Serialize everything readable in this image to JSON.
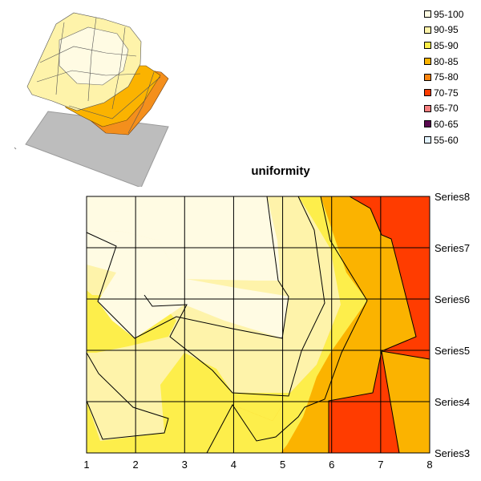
{
  "chart_data": {
    "type": "contour",
    "title": "uniformity",
    "x_categories": [
      "1",
      "2",
      "3",
      "4",
      "5",
      "6",
      "7",
      "8"
    ],
    "y_categories": [
      "Series3",
      "Series4",
      "Series5",
      "Series6",
      "Series7",
      "Series8"
    ],
    "legend": [
      {
        "label": "95-100",
        "color": "#fffbe3"
      },
      {
        "label": "90-95",
        "color": "#fef3aa"
      },
      {
        "label": "85-90",
        "color": "#fdee4b"
      },
      {
        "label": "80-85",
        "color": "#fbb300"
      },
      {
        "label": "75-80",
        "color": "#fb8510"
      },
      {
        "label": "70-75",
        "color": "#ff3c00"
      },
      {
        "label": "65-70",
        "color": "#f77f7f"
      },
      {
        "label": "60-65",
        "color": "#5a0a50"
      },
      {
        "label": "55-60",
        "color": "#e2f3ff"
      }
    ],
    "legend_position": "top-right",
    "grid": true
  }
}
